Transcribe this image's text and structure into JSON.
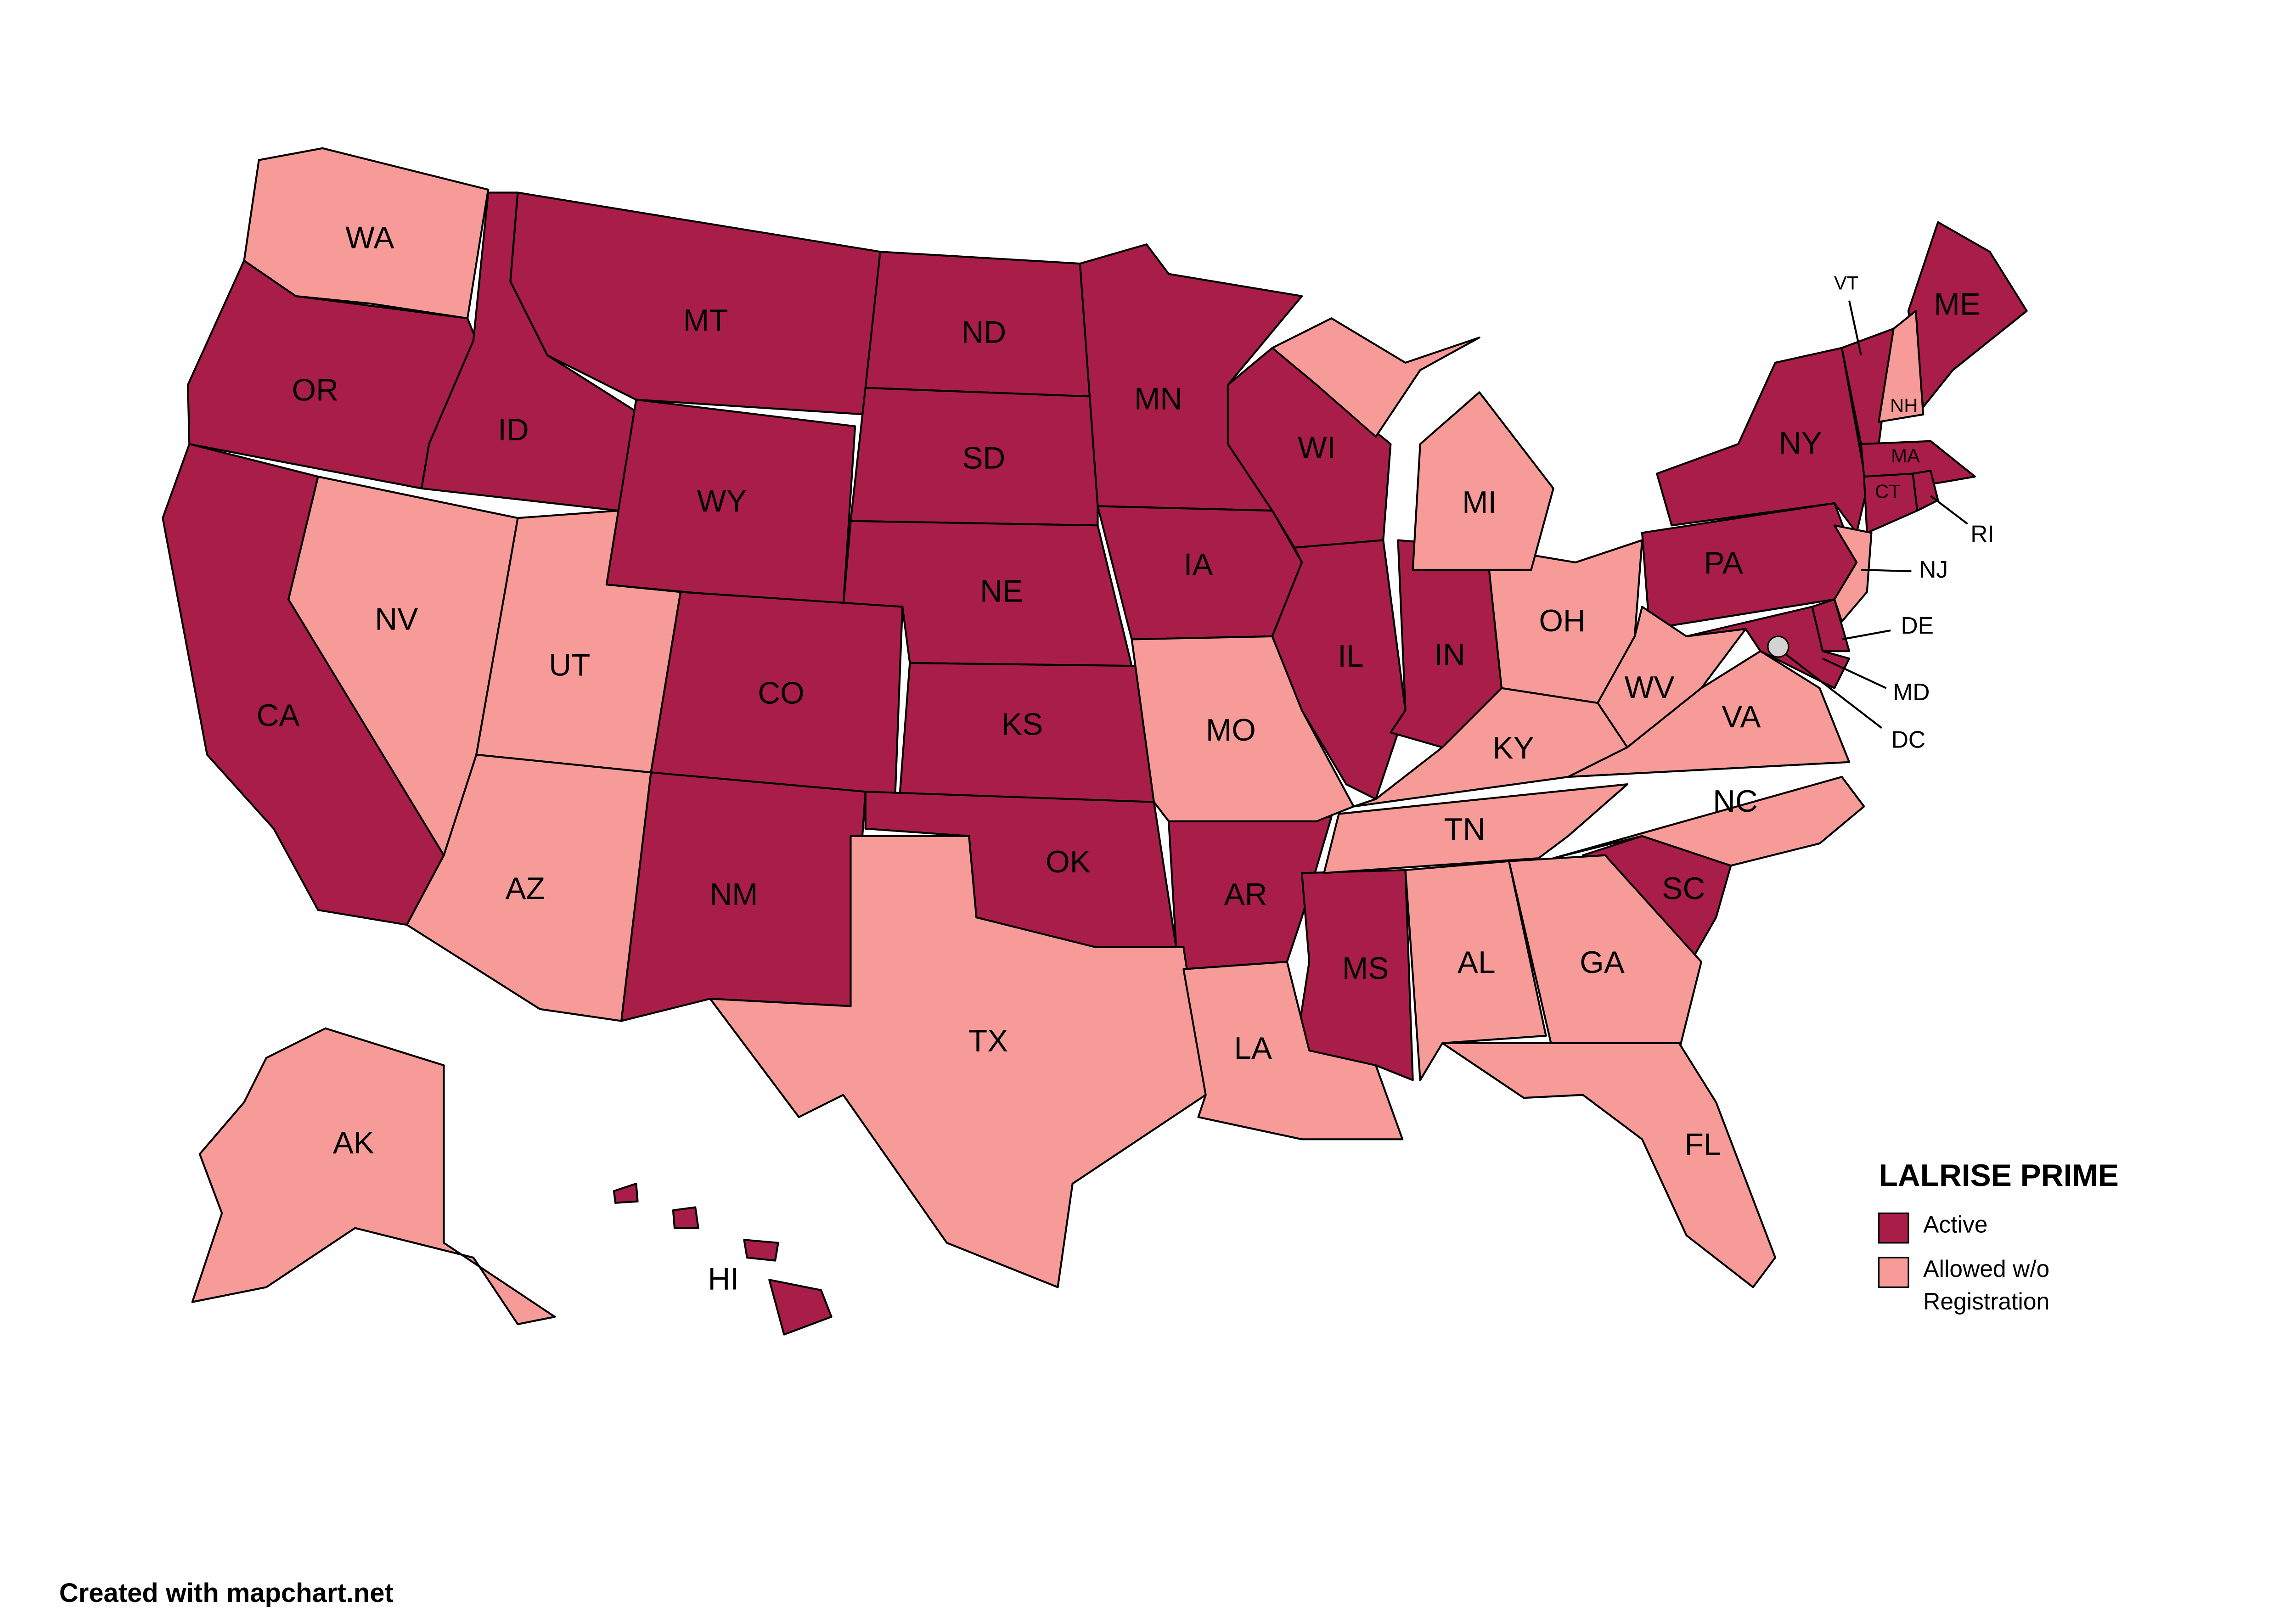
{
  "legend": {
    "title": "LALRISE PRIME",
    "items": [
      {
        "label": "Active",
        "color": "#a81e48",
        "states": [
          "OR",
          "CA",
          "ID",
          "MT",
          "WY",
          "ND",
          "SD",
          "NE",
          "CO",
          "KS",
          "NM",
          "OK",
          "AR",
          "MN",
          "IA",
          "WI",
          "IL",
          "IN",
          "MS",
          "SC",
          "NY",
          "PA",
          "VT",
          "ME",
          "MA",
          "CT",
          "RI",
          "MD",
          "DE",
          "HI"
        ]
      },
      {
        "label": "Allowed w/o Registration",
        "color": "#f79b98",
        "states": [
          "WA",
          "NV",
          "UT",
          "AZ",
          "TX",
          "MO",
          "LA",
          "AL",
          "GA",
          "FL",
          "TN",
          "KY",
          "OH",
          "MI",
          "WV",
          "VA",
          "NC",
          "NH",
          "NJ",
          "AK"
        ]
      }
    ]
  },
  "unassigned": {
    "color": "#d3d3d3",
    "states": [
      "DC"
    ]
  },
  "credit": "Created with mapchart.net"
}
